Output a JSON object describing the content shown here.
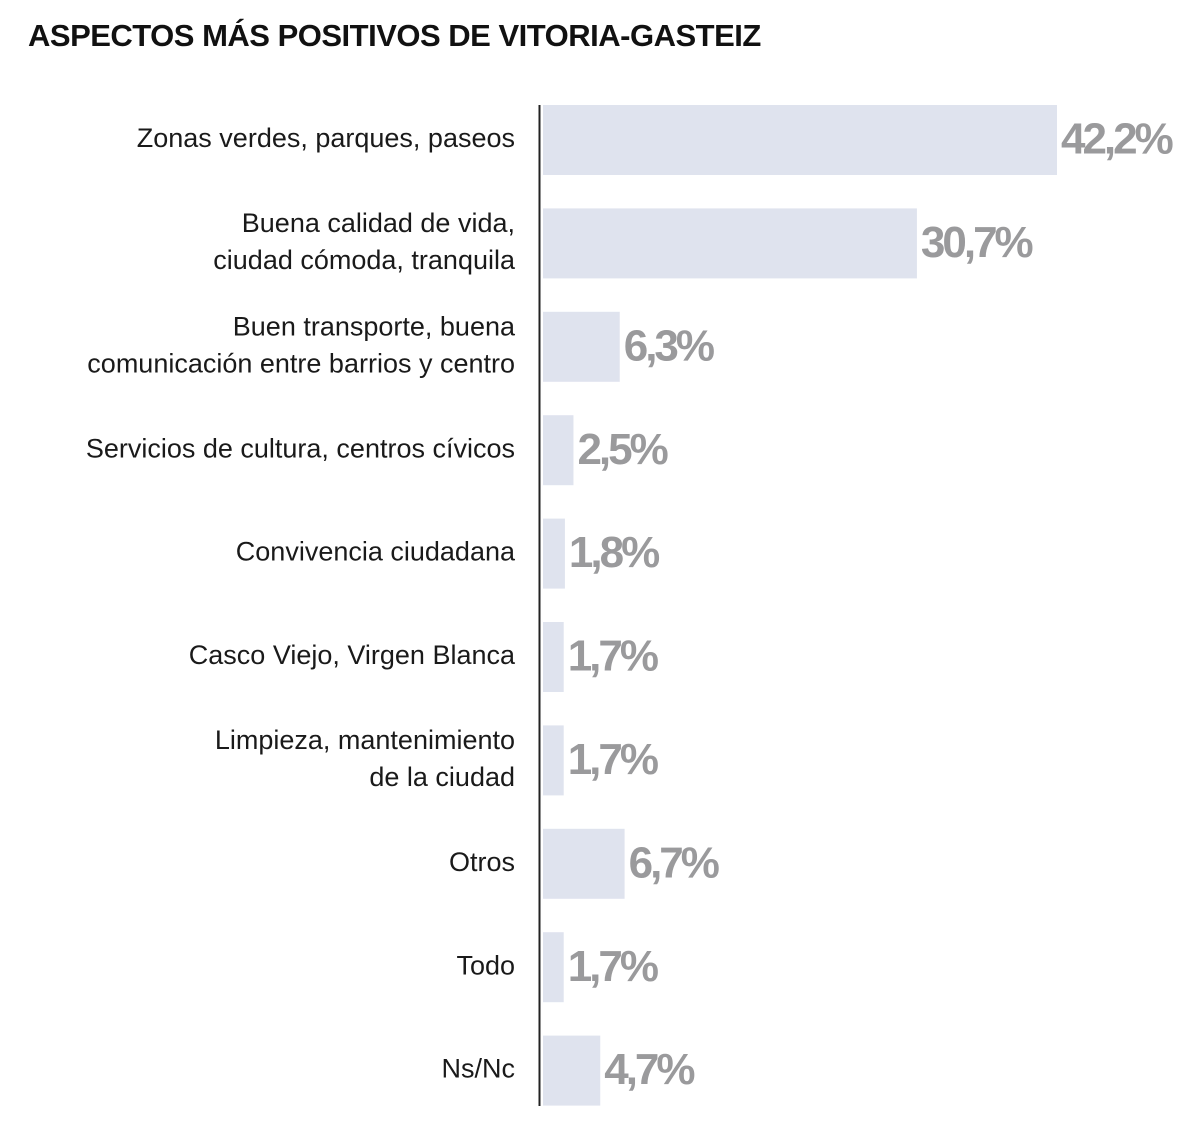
{
  "chart_data": {
    "type": "bar",
    "orientation": "horizontal",
    "title": "ASPECTOS MÁS POSITIVOS DE VITORIA-GASTEIZ",
    "categories": [
      [
        "Zonas verdes, parques, paseos"
      ],
      [
        "Buena calidad de vida,",
        "ciudad cómoda, tranquila"
      ],
      [
        "Buen transporte, buena",
        "comunicación entre barrios y centro"
      ],
      [
        "Servicios de cultura, centros cívicos"
      ],
      [
        "Convivencia ciudadana"
      ],
      [
        "Casco Viejo, Virgen Blanca"
      ],
      [
        "Limpieza, mantenimiento",
        "de la ciudad"
      ],
      [
        "Otros"
      ],
      [
        "Todo"
      ],
      [
        "Ns/Nc"
      ]
    ],
    "values": [
      42.2,
      30.7,
      6.3,
      2.5,
      1.8,
      1.7,
      1.7,
      6.7,
      1.7,
      4.7
    ],
    "value_labels": [
      "42,2%",
      "30,7%",
      "6,3%",
      "2,5%",
      "1,8%",
      "1,7%",
      "1,7%",
      "6,7%",
      "1,7%",
      "4,7%"
    ],
    "color": "#dfe3ee"
  }
}
